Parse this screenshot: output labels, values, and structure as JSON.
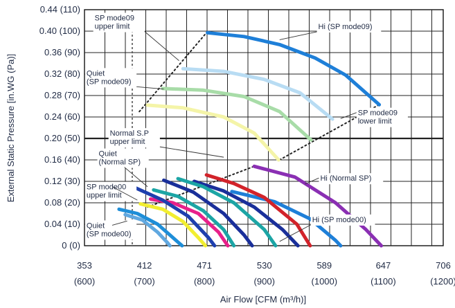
{
  "chart_data": {
    "type": "line",
    "title": "",
    "xlabel": "Air Flow [CFM (m³/h)]",
    "ylabel": "External Static Pressure [in.WG (Pa)]",
    "xlim": [
      353,
      706
    ],
    "ylim": [
      0,
      0.44
    ],
    "grid": true,
    "x_ticks": [
      {
        "value": 353,
        "top": "353",
        "bottom": "(600)"
      },
      {
        "value": 412,
        "top": "412",
        "bottom": "(700)"
      },
      {
        "value": 471,
        "top": "471",
        "bottom": "(800)"
      },
      {
        "value": 530,
        "top": "530",
        "bottom": "(900)"
      },
      {
        "value": 589,
        "top": "589",
        "bottom": "(1000)"
      },
      {
        "value": 647,
        "top": "647",
        "bottom": "(1100)"
      },
      {
        "value": 706,
        "top": "706",
        "bottom": "(1200)"
      }
    ],
    "y_ticks": [
      {
        "value": 0.0,
        "label": "0 (0)"
      },
      {
        "value": 0.04,
        "label": "0.04 (10)"
      },
      {
        "value": 0.08,
        "label": "0.08 (20)"
      },
      {
        "value": 0.12,
        "label": "0.12 (30)"
      },
      {
        "value": 0.16,
        "label": "0.16 (40)"
      },
      {
        "value": 0.2,
        "label": "0.20 (50)"
      },
      {
        "value": 0.24,
        "label": "0.24 (60)"
      },
      {
        "value": 0.28,
        "label": "0.28 (70)"
      },
      {
        "value": 0.32,
        "label": "0.32 (80)"
      },
      {
        "value": 0.36,
        "label": "0.36 (90)"
      },
      {
        "value": 0.4,
        "label": "0.40 (100)"
      },
      {
        "value": 0.44,
        "label": "0.44 (110)"
      }
    ],
    "series": [
      {
        "color": "#1e7fd8",
        "points": [
          [
            474,
            0.397
          ],
          [
            510,
            0.39
          ],
          [
            545,
            0.375
          ],
          [
            580,
            0.35
          ],
          [
            610,
            0.318
          ],
          [
            643,
            0.263
          ]
        ]
      },
      {
        "color": "#b8dcf3",
        "points": [
          [
            450,
            0.33
          ],
          [
            490,
            0.325
          ],
          [
            530,
            0.31
          ],
          [
            565,
            0.285
          ],
          [
            597,
            0.236
          ]
        ]
      },
      {
        "color": "#a8dca8",
        "points": [
          [
            430,
            0.293
          ],
          [
            470,
            0.29
          ],
          [
            510,
            0.278
          ],
          [
            545,
            0.25
          ],
          [
            576,
            0.197
          ]
        ]
      },
      {
        "color": "#f4f4a8",
        "points": [
          [
            415,
            0.262
          ],
          [
            450,
            0.257
          ],
          [
            490,
            0.24
          ],
          [
            520,
            0.21
          ],
          [
            544,
            0.16
          ]
        ]
      },
      {
        "color": "#8a2fb3",
        "points": [
          [
            520,
            0.148
          ],
          [
            560,
            0.128
          ],
          [
            600,
            0.08
          ],
          [
            630,
            0.03
          ],
          [
            645,
            0.0
          ]
        ]
      },
      {
        "color": "#1e7fd8",
        "points": [
          [
            498,
            0.101
          ],
          [
            540,
            0.082
          ],
          [
            575,
            0.05
          ],
          [
            600,
            0.01
          ],
          [
            605,
            0.0
          ]
        ]
      },
      {
        "color": "#d2232a",
        "points": [
          [
            473,
            0.132
          ],
          [
            500,
            0.116
          ],
          [
            530,
            0.09
          ],
          [
            562,
            0.04
          ],
          [
            575,
            0.0
          ]
        ]
      },
      {
        "color": "#1a2f9a",
        "points": [
          [
            461,
            0.12
          ],
          [
            490,
            0.102
          ],
          [
            520,
            0.072
          ],
          [
            548,
            0.03
          ],
          [
            563,
            0.0
          ]
        ]
      },
      {
        "color": "#1ca5a5",
        "points": [
          [
            445,
            0.125
          ],
          [
            470,
            0.11
          ],
          [
            500,
            0.08
          ],
          [
            530,
            0.03
          ],
          [
            541,
            0.0
          ]
        ]
      },
      {
        "color": "#1a2f9a",
        "points": [
          [
            431,
            0.122
          ],
          [
            460,
            0.1
          ],
          [
            490,
            0.06
          ],
          [
            510,
            0.02
          ],
          [
            518,
            0.0
          ]
        ]
      },
      {
        "color": "#1ca5a5",
        "points": [
          [
            421,
            0.104
          ],
          [
            445,
            0.092
          ],
          [
            470,
            0.065
          ],
          [
            490,
            0.03
          ],
          [
            500,
            0.0
          ]
        ]
      },
      {
        "color": "#e8208a",
        "points": [
          [
            418,
            0.087
          ],
          [
            440,
            0.08
          ],
          [
            465,
            0.06
          ],
          [
            485,
            0.025
          ],
          [
            494,
            0.0
          ]
        ]
      },
      {
        "color": "#1e3fae",
        "points": [
          [
            403,
            0.108
          ],
          [
            430,
            0.085
          ],
          [
            455,
            0.055
          ],
          [
            475,
            0.015
          ],
          [
            481,
            0.0
          ]
        ]
      },
      {
        "color": "#f2ee30",
        "points": [
          [
            408,
            0.078
          ],
          [
            430,
            0.068
          ],
          [
            450,
            0.045
          ],
          [
            465,
            0.015
          ],
          [
            472,
            0.0
          ]
        ]
      },
      {
        "color": "#1e8ed8",
        "points": [
          [
            387,
            0.068
          ],
          [
            405,
            0.06
          ],
          [
            425,
            0.04
          ],
          [
            440,
            0.015
          ],
          [
            449,
            0.0
          ]
        ]
      },
      {
        "color": "#60a8e0",
        "points": [
          [
            393,
            0.058
          ],
          [
            410,
            0.048
          ],
          [
            425,
            0.025
          ],
          [
            435,
            0.005
          ],
          [
            437,
            0.0
          ]
        ]
      }
    ],
    "limit_lines": [
      {
        "name": "SP mode09 upper limit",
        "points": [
          [
            407,
            0.25
          ],
          [
            473,
            0.397
          ]
        ]
      },
      {
        "name": "SP mode09 lower limit",
        "points": [
          [
            545,
            0.16
          ],
          [
            643,
            0.263
          ]
        ]
      },
      {
        "name": "Normal SP upper limit",
        "points": [
          [
            415,
            0.072
          ],
          [
            520,
            0.148
          ]
        ]
      }
    ],
    "annotations": [
      {
        "lines": [
          "SP mode09",
          "upper limit"
        ],
        "text_at": [
          363,
          0.42
        ],
        "to": [
          446,
          0.345
        ]
      },
      {
        "lines": [
          "Hi (SP mode09)"
        ],
        "text_at": [
          583,
          0.404
        ],
        "to": [
          545,
          0.384
        ]
      },
      {
        "lines": [
          "Quiet",
          "(SP mode09)"
        ],
        "text_at": [
          355,
          0.317
        ],
        "to": [
          431,
          0.292
        ]
      },
      {
        "lines": [
          "SP mode09",
          "lower limit"
        ],
        "text_at": [
          622,
          0.243
        ],
        "to": [
          605,
          0.237
        ]
      },
      {
        "lines": [
          "Normal S.P",
          "upper limit"
        ],
        "text_at": [
          378,
          0.205
        ],
        "to": [
          490,
          0.165
        ]
      },
      {
        "lines": [
          "Quiet",
          "(Normal SP)"
        ],
        "text_at": [
          367,
          0.167
        ],
        "to": [
          415,
          0.11
        ]
      },
      {
        "lines": [
          "Hi (Normal SP)"
        ],
        "text_at": [
          585,
          0.121
        ],
        "to": [
          570,
          0.115
        ]
      },
      {
        "lines": [
          "SP mode00",
          "upper limit"
        ],
        "text_at": [
          355,
          0.105
        ],
        "to": [
          405,
          0.085
        ]
      },
      {
        "lines": [
          "Hi (SP mode00)"
        ],
        "text_at": [
          577,
          0.044
        ],
        "to": [
          545,
          0.008
        ]
      },
      {
        "lines": [
          "Quiet",
          "(SP mode00)"
        ],
        "text_at": [
          355,
          0.033
        ],
        "to": [
          395,
          0.046
        ]
      }
    ]
  }
}
